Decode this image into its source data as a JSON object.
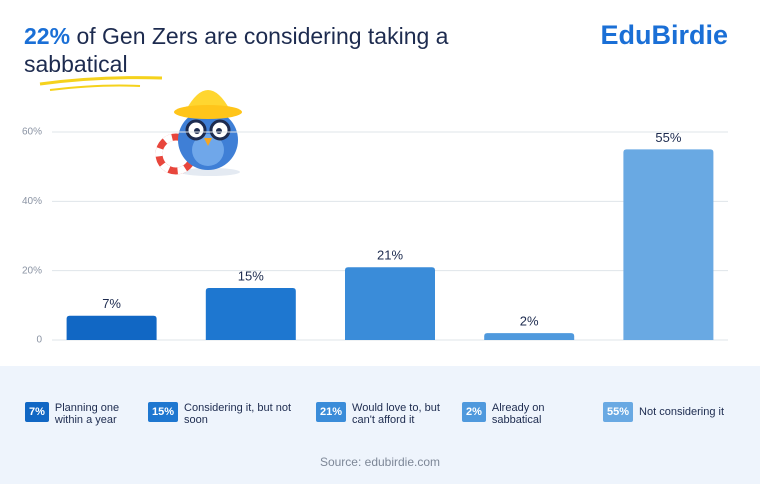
{
  "brand": "EduBirdie",
  "source": "Source: edubirdie.com",
  "chart_data": {
    "type": "bar",
    "title_highlight": "22%",
    "title": "of Gen Zers are considering taking a sabbatical",
    "categories": [
      "Planning one within a year",
      "Considering it, but not soon",
      "Would love to, but can't afford it",
      "Already on sabbatical",
      "Not considering it"
    ],
    "values": [
      7,
      15,
      21,
      2,
      55
    ],
    "value_labels": [
      "7%",
      "15%",
      "21%",
      "2%",
      "55%"
    ],
    "colors": [
      "#1167c4",
      "#1e77d0",
      "#3a8cd9",
      "#4f99dd",
      "#69a9e3"
    ],
    "ylim": [
      0,
      60
    ],
    "yticks": [
      0,
      {
        "value": 20,
        "label": "20%"
      },
      {
        "value": 40,
        "label": "40%"
      },
      {
        "value": 60,
        "label": "60%"
      }
    ],
    "grid": true
  }
}
